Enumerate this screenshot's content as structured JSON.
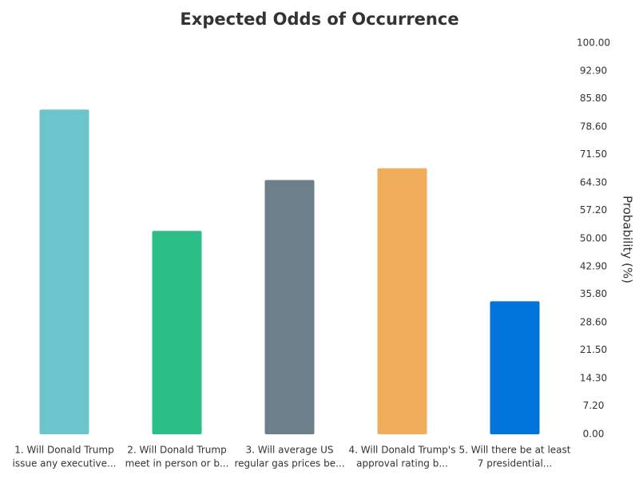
{
  "chart_data": {
    "type": "bar",
    "title": "Expected Odds of Occurrence",
    "y_axis_label": "Probability (%)",
    "categories": [
      [
        "1. Will Donald Trump",
        "issue any executive..."
      ],
      [
        "2. Will Donald Trump",
        "meet in person or b..."
      ],
      [
        "3. Will average US",
        "regular gas prices be..."
      ],
      [
        "4. Will Donald Trump's",
        "approval rating b..."
      ],
      [
        "5. Will there be at least",
        "7 presidential..."
      ]
    ],
    "values": [
      83,
      52,
      65,
      68,
      34
    ],
    "colors": [
      "#6cc4cc",
      "#2bbf87",
      "#6c7f8a",
      "#f0ad5a",
      "#0074d9"
    ],
    "ylim": [
      0,
      100
    ],
    "yticks": [
      {
        "value": 0,
        "label": "0.00"
      },
      {
        "value": 7.2,
        "label": "7.20"
      },
      {
        "value": 14.3,
        "label": "14.30"
      },
      {
        "value": 21.5,
        "label": "21.50"
      },
      {
        "value": 28.6,
        "label": "28.60"
      },
      {
        "value": 35.8,
        "label": "35.80"
      },
      {
        "value": 42.9,
        "label": "42.90"
      },
      {
        "value": 50,
        "label": "50.00"
      },
      {
        "value": 57.2,
        "label": "57.20"
      },
      {
        "value": 64.3,
        "label": "64.30"
      },
      {
        "value": 71.5,
        "label": "71.50"
      },
      {
        "value": 78.6,
        "label": "78.60"
      },
      {
        "value": 85.8,
        "label": "85.80"
      },
      {
        "value": 92.9,
        "label": "92.90"
      },
      {
        "value": 100,
        "label": "100.00"
      }
    ],
    "y_axis_side": "right",
    "grid": false
  }
}
